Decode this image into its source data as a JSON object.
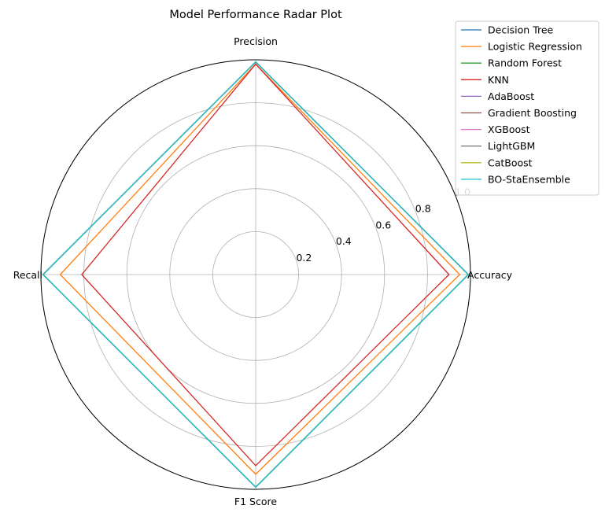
{
  "chart_data": {
    "type": "radar",
    "title": "Model Performance Radar Plot",
    "axes": [
      "Accuracy",
      "Precision",
      "Recall",
      "F1 Score"
    ],
    "rlim": [
      0,
      1.0
    ],
    "rticks": [
      0.2,
      0.4,
      0.6,
      0.8,
      1.0
    ],
    "rtick_labels": [
      "0.2",
      "0.4",
      "0.6",
      "0.8",
      "1.0"
    ],
    "grid": true,
    "legend_position": "top-right",
    "series": [
      {
        "name": "Decision Tree",
        "color": "#1f77b4",
        "values": [
          0.99,
          0.99,
          0.99,
          0.99
        ]
      },
      {
        "name": "Logistic Regression",
        "color": "#ff7f0e",
        "values": [
          0.95,
          0.98,
          0.91,
          0.93
        ]
      },
      {
        "name": "Random Forest",
        "color": "#2ca02c",
        "values": [
          0.99,
          0.99,
          0.99,
          0.99
        ]
      },
      {
        "name": "KNN",
        "color": "#d62728",
        "values": [
          0.9,
          0.98,
          0.81,
          0.89
        ]
      },
      {
        "name": "AdaBoost",
        "color": "#9467bd",
        "values": [
          0.99,
          0.99,
          0.99,
          0.99
        ]
      },
      {
        "name": "Gradient Boosting",
        "color": "#8c564b",
        "values": [
          0.99,
          0.99,
          0.99,
          0.99
        ]
      },
      {
        "name": "XGBoost",
        "color": "#e377c2",
        "values": [
          0.99,
          0.99,
          0.99,
          0.99
        ]
      },
      {
        "name": "LightGBM",
        "color": "#7f7f7f",
        "values": [
          0.99,
          0.99,
          0.99,
          0.99
        ]
      },
      {
        "name": "CatBoost",
        "color": "#bcbd22",
        "values": [
          0.99,
          0.99,
          0.99,
          0.99
        ]
      },
      {
        "name": "BO-StaEnsemble",
        "color": "#17becf",
        "values": [
          0.99,
          0.99,
          0.99,
          0.99
        ]
      }
    ]
  }
}
